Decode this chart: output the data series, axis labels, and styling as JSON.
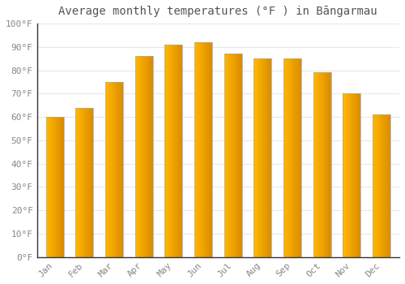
{
  "title": "Average monthly temperatures (°F ) in Bāngarmau",
  "months": [
    "Jan",
    "Feb",
    "Mar",
    "Apr",
    "May",
    "Jun",
    "Jul",
    "Aug",
    "Sep",
    "Oct",
    "Nov",
    "Dec"
  ],
  "values": [
    60,
    64,
    75,
    86,
    91,
    92,
    87,
    85,
    85,
    79,
    70,
    61
  ],
  "bar_color_left": "#FFD040",
  "bar_color_right": "#FFA020",
  "bar_edge_color": "#AAAAAA",
  "ylim": [
    0,
    100
  ],
  "yticks": [
    0,
    10,
    20,
    30,
    40,
    50,
    60,
    70,
    80,
    90,
    100
  ],
  "ytick_labels": [
    "0°F",
    "10°F",
    "20°F",
    "30°F",
    "40°F",
    "50°F",
    "60°F",
    "70°F",
    "80°F",
    "90°F",
    "100°F"
  ],
  "background_color": "#FFFFFF",
  "grid_color": "#E8E8E8",
  "title_fontsize": 10,
  "tick_fontsize": 8,
  "bar_width": 0.6
}
